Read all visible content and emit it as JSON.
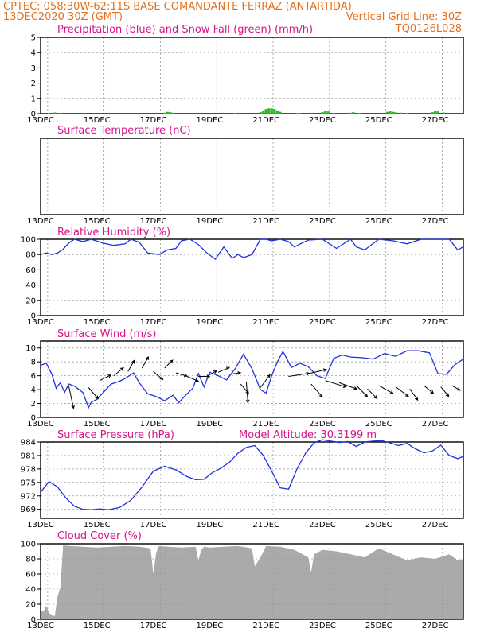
{
  "header": {
    "line1_left": "CPTEC:  058:30W-62:11S  BASE COMANDANTE FERRAZ (ANTARTIDA)",
    "line2_left": "13DEC2020 30Z (GMT)",
    "line2_right": "Vertical Grid Line: 30Z",
    "line3_right": "TQ0126L028"
  },
  "colors": {
    "header": "#e0701c",
    "title": "#d6138a",
    "line": "#2030e0",
    "snow": "#22bb22",
    "cloud": "#aaaaaa"
  },
  "x_dates": [
    "13DEC",
    "15DEC",
    "17DEC",
    "19DEC",
    "21DEC",
    "23DEC",
    "25DEC",
    "27DEC"
  ],
  "chart_data": [
    {
      "id": "precip",
      "type": "bar",
      "title": "Precipitation (blue) and Snow Fall (green) (mm/h)",
      "ylim": [
        0,
        5
      ],
      "yticks": [
        0,
        1,
        2,
        3,
        4,
        5
      ],
      "xlim": [
        0,
        15
      ],
      "series": [
        {
          "name": "Precipitation",
          "color": "#2030e0",
          "x": [],
          "values": []
        },
        {
          "name": "Snow Fall",
          "color": "#22bb22",
          "x": [
            0.3,
            0.5,
            0.7,
            4.4,
            4.5,
            4.6,
            4.7,
            6.9,
            7.8,
            7.9,
            8.0,
            8.1,
            8.2,
            8.3,
            8.4,
            8.5,
            9.1,
            9.2,
            10.0,
            10.1,
            10.2,
            10.4,
            11.0,
            11.1,
            11.3,
            12.3,
            12.4,
            12.5,
            12.6,
            12.8,
            13.0,
            13.9,
            14.0,
            14.1,
            14.3
          ],
          "values": [
            0.05,
            0.08,
            0.05,
            0.06,
            0.12,
            0.1,
            0.06,
            0.04,
            0.1,
            0.2,
            0.3,
            0.35,
            0.35,
            0.3,
            0.22,
            0.12,
            0.05,
            0.04,
            0.1,
            0.18,
            0.15,
            0.05,
            0.06,
            0.1,
            0.05,
            0.12,
            0.15,
            0.12,
            0.1,
            0.06,
            0.04,
            0.1,
            0.18,
            0.15,
            0.08
          ]
        }
      ]
    },
    {
      "id": "temp",
      "type": "line",
      "title": "Surface Temperature (nC)",
      "xlim": [
        0,
        15
      ],
      "series": []
    },
    {
      "id": "rh",
      "type": "line",
      "title": "Relative Humidity (%)",
      "ylim": [
        0,
        100
      ],
      "yticks": [
        0,
        20,
        40,
        60,
        80,
        100
      ],
      "xlim": [
        0,
        15
      ],
      "series": [
        {
          "name": "Relative Humidity",
          "color": "#2030e0",
          "x": [
            0,
            0.2,
            0.4,
            0.6,
            0.8,
            1.0,
            1.2,
            1.5,
            1.8,
            2.2,
            2.6,
            3.0,
            3.2,
            3.5,
            3.8,
            4.2,
            4.5,
            4.8,
            5.0,
            5.3,
            5.6,
            5.9,
            6.2,
            6.5,
            6.8,
            7.0,
            7.2,
            7.5,
            7.8,
            8.0,
            8.2,
            8.5,
            8.8,
            9.0,
            9.5,
            10.0,
            10.5,
            11.0,
            11.2,
            11.5,
            12.0,
            12.5,
            13.0,
            13.5,
            14.0,
            14.5,
            14.8,
            15.0
          ],
          "values": [
            80,
            82,
            80,
            82,
            87,
            95,
            100,
            97,
            100,
            95,
            92,
            94,
            100,
            96,
            82,
            80,
            86,
            88,
            98,
            100,
            93,
            82,
            74,
            90,
            75,
            80,
            76,
            80,
            100,
            100,
            98,
            100,
            97,
            90,
            99,
            100,
            88,
            100,
            90,
            86,
            100,
            98,
            94,
            100,
            100,
            100,
            86,
            90
          ]
        }
      ]
    },
    {
      "id": "wind",
      "type": "line",
      "title": "Surface Wind (m/s)",
      "ylim": [
        0,
        11
      ],
      "yticks": [
        0,
        2,
        4,
        6,
        8,
        10
      ],
      "xlim": [
        0,
        15
      ],
      "series": [
        {
          "name": "Wind Speed",
          "color": "#2030e0",
          "x": [
            0,
            0.2,
            0.4,
            0.55,
            0.7,
            0.85,
            1.0,
            1.2,
            1.5,
            1.7,
            1.8,
            2.0,
            2.2,
            2.5,
            2.8,
            3.0,
            3.3,
            3.5,
            3.8,
            4.1,
            4.4,
            4.7,
            4.9,
            5.1,
            5.4,
            5.6,
            5.8,
            6.0,
            6.3,
            6.6,
            6.9,
            7.2,
            7.5,
            7.8,
            8.0,
            8.2,
            8.4,
            8.6,
            8.9,
            9.2,
            9.5,
            9.8,
            10.1,
            10.4,
            10.7,
            11.0,
            11.4,
            11.8,
            12.2,
            12.6,
            13.0,
            13.4,
            13.8,
            14.1,
            14.4,
            14.7,
            15.0
          ],
          "values": [
            7.5,
            7.8,
            6.2,
            4.2,
            5.0,
            3.6,
            4.8,
            4.5,
            3.6,
            1.4,
            2.2,
            2.6,
            3.5,
            4.8,
            5.2,
            5.6,
            6.4,
            5.0,
            3.4,
            3.0,
            2.4,
            3.2,
            2.1,
            3.0,
            4.2,
            6.3,
            4.4,
            6.5,
            6.0,
            5.4,
            7.0,
            9.1,
            7.0,
            4.0,
            3.5,
            6.0,
            8.0,
            9.5,
            7.2,
            7.8,
            7.3,
            6.0,
            5.6,
            8.5,
            9.0,
            8.7,
            8.6,
            8.4,
            9.2,
            8.8,
            9.6,
            9.6,
            9.3,
            6.3,
            6.2,
            7.6,
            8.4
          ]
        }
      ],
      "vectors": [
        {
          "x": 1.0,
          "y": 4.5,
          "dx": 6,
          "dy": 28
        },
        {
          "x": 1.7,
          "y": 4.3,
          "dx": 12,
          "dy": 14
        },
        {
          "x": 2.1,
          "y": 5.3,
          "dx": 14,
          "dy": -7
        },
        {
          "x": 2.6,
          "y": 6.0,
          "dx": 12,
          "dy": -10
        },
        {
          "x": 3.1,
          "y": 6.6,
          "dx": 8,
          "dy": -14
        },
        {
          "x": 3.6,
          "y": 7.1,
          "dx": 8,
          "dy": -14
        },
        {
          "x": 4.0,
          "y": 6.6,
          "dx": 12,
          "dy": 10
        },
        {
          "x": 4.4,
          "y": 7.1,
          "dx": 10,
          "dy": -10
        },
        {
          "x": 4.8,
          "y": 6.4,
          "dx": 14,
          "dy": 4
        },
        {
          "x": 5.2,
          "y": 5.9,
          "dx": 14,
          "dy": 6
        },
        {
          "x": 5.6,
          "y": 5.9,
          "dx": 14,
          "dy": 0
        },
        {
          "x": 5.9,
          "y": 5.9,
          "dx": 12,
          "dy": -7
        },
        {
          "x": 6.3,
          "y": 6.5,
          "dx": 14,
          "dy": -6
        },
        {
          "x": 6.7,
          "y": 6.2,
          "dx": 14,
          "dy": -2
        },
        {
          "x": 7.1,
          "y": 4.8,
          "dx": 10,
          "dy": 12
        },
        {
          "x": 7.3,
          "y": 5.1,
          "dx": 2,
          "dy": 26
        },
        {
          "x": 7.8,
          "y": 4.3,
          "dx": 12,
          "dy": -16
        },
        {
          "x": 8.8,
          "y": 5.9,
          "dx": 26,
          "dy": -4
        },
        {
          "x": 9.4,
          "y": 6.2,
          "dx": 26,
          "dy": -6
        },
        {
          "x": 9.6,
          "y": 4.8,
          "dx": 14,
          "dy": 16
        },
        {
          "x": 10.1,
          "y": 5.3,
          "dx": 26,
          "dy": 8
        },
        {
          "x": 10.6,
          "y": 5.0,
          "dx": 22,
          "dy": 8
        },
        {
          "x": 11.2,
          "y": 4.6,
          "dx": 14,
          "dy": 14
        },
        {
          "x": 11.6,
          "y": 4.1,
          "dx": 12,
          "dy": 12
        },
        {
          "x": 12.0,
          "y": 4.6,
          "dx": 18,
          "dy": 10
        },
        {
          "x": 12.6,
          "y": 4.4,
          "dx": 16,
          "dy": 12
        },
        {
          "x": 13.1,
          "y": 4.1,
          "dx": 10,
          "dy": 14
        },
        {
          "x": 13.6,
          "y": 4.6,
          "dx": 12,
          "dy": 10
        },
        {
          "x": 14.2,
          "y": 4.4,
          "dx": 10,
          "dy": 12
        },
        {
          "x": 14.6,
          "y": 4.6,
          "dx": 10,
          "dy": 6
        }
      ]
    },
    {
      "id": "pressure",
      "type": "line",
      "title": "Surface Pressure (hPa)",
      "annotation": "Model Altitude: 30.3199 m",
      "ylim": [
        967,
        984
      ],
      "yticks": [
        969,
        972,
        975,
        978,
        981,
        984
      ],
      "xlim": [
        0,
        15
      ],
      "series": [
        {
          "name": "Surface Pressure",
          "color": "#2030e0",
          "x": [
            0,
            0.3,
            0.6,
            0.9,
            1.2,
            1.5,
            1.8,
            2.1,
            2.4,
            2.8,
            3.2,
            3.6,
            4.0,
            4.4,
            4.8,
            5.2,
            5.5,
            5.8,
            6.1,
            6.4,
            6.7,
            7.0,
            7.3,
            7.6,
            7.9,
            8.2,
            8.5,
            8.8,
            9.1,
            9.4,
            9.7,
            10.0,
            10.3,
            10.6,
            10.9,
            11.2,
            11.5,
            11.8,
            12.1,
            12.4,
            12.7,
            13.0,
            13.3,
            13.6,
            13.9,
            14.2,
            14.5,
            14.8,
            15.0
          ],
          "values": [
            972.8,
            975.2,
            974.0,
            971.5,
            969.7,
            969.0,
            968.9,
            969.1,
            968.9,
            969.4,
            971.0,
            974.0,
            977.5,
            978.6,
            977.8,
            976.3,
            975.6,
            975.7,
            977.2,
            978.2,
            979.5,
            981.5,
            982.8,
            983.2,
            981.0,
            977.5,
            973.8,
            973.5,
            978.0,
            981.5,
            983.8,
            984.5,
            984.2,
            983.9,
            984.1,
            983.0,
            984.0,
            984.2,
            984.3,
            983.8,
            983.2,
            983.7,
            982.5,
            981.6,
            982.0,
            983.3,
            981.0,
            980.3,
            980.8
          ]
        }
      ]
    },
    {
      "id": "cloud",
      "type": "area",
      "title": "Cloud Cover (%)",
      "ylim": [
        0,
        100
      ],
      "yticks": [
        0,
        20,
        40,
        60,
        80,
        100
      ],
      "xlim": [
        0,
        15
      ],
      "series": [
        {
          "name": "Cloud Cover",
          "color": "#aaaaaa",
          "x": [
            0,
            0.1,
            0.2,
            0.3,
            0.4,
            0.5,
            0.6,
            0.7,
            0.8,
            1.0,
            1.5,
            2.0,
            2.5,
            3.0,
            3.5,
            3.9,
            4.0,
            4.1,
            4.2,
            4.5,
            5.0,
            5.5,
            5.6,
            5.7,
            5.8,
            6.0,
            6.5,
            7.0,
            7.5,
            7.6,
            7.8,
            8.0,
            8.5,
            9.0,
            9.5,
            9.6,
            9.7,
            10.0,
            10.5,
            11.0,
            11.5,
            12.0,
            12.5,
            13.0,
            13.5,
            14.0,
            14.5,
            14.8,
            15.0
          ],
          "values": [
            12,
            10,
            18,
            8,
            6,
            4,
            30,
            42,
            98,
            97,
            96,
            95,
            96,
            97,
            96,
            94,
            60,
            88,
            97,
            96,
            95,
            96,
            78,
            92,
            96,
            95,
            96,
            97,
            94,
            70,
            82,
            97,
            96,
            92,
            82,
            62,
            86,
            92,
            90,
            86,
            82,
            94,
            86,
            78,
            82,
            80,
            86,
            78,
            80
          ]
        }
      ]
    }
  ]
}
